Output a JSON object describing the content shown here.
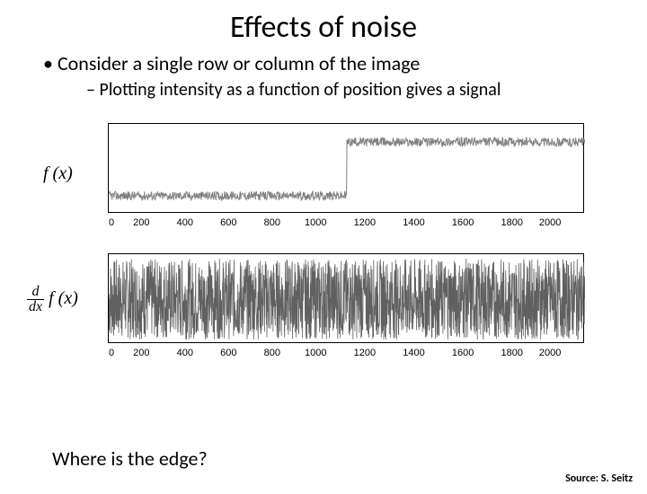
{
  "title": "Effects of noise",
  "bullet1": "Consider a single row or column of the image",
  "bullet2": "Plotting intensity as a function of position gives a signal",
  "fx_label": "f (x)",
  "dfx_prefix_top": "d",
  "dfx_prefix_bot": "dx",
  "bottom_question": "Where is the edge?",
  "source": "Source: S. Seitz",
  "plot1": {
    "type": "line",
    "description": "noisy step edge signal",
    "xlim": [
      0,
      2000
    ],
    "xtick_step": 200,
    "xticks": [
      "0",
      "200",
      "400",
      "600",
      "800",
      "1000",
      "1200",
      "1400",
      "1600",
      "1800",
      "2000"
    ],
    "signal_color": "#808080",
    "background_color": "#ffffff",
    "border_color": "#000000",
    "low_level": 0.2,
    "high_level": 0.8,
    "step_at": 1000,
    "noise_amplitude": 0.05,
    "label_fontsize": 11,
    "num_samples": 2000
  },
  "plot2": {
    "type": "line",
    "description": "derivative of noisy signal (dense noise)",
    "xlim": [
      0,
      2000
    ],
    "xtick_step": 200,
    "xticks": [
      "0",
      "200",
      "400",
      "600",
      "800",
      "1000",
      "1200",
      "1400",
      "1600",
      "1800",
      "2000"
    ],
    "signal_color": "#606060",
    "background_color": "#ffffff",
    "border_color": "#000000",
    "noise_amplitude": 1.0,
    "label_fontsize": 11,
    "num_samples": 2000
  }
}
